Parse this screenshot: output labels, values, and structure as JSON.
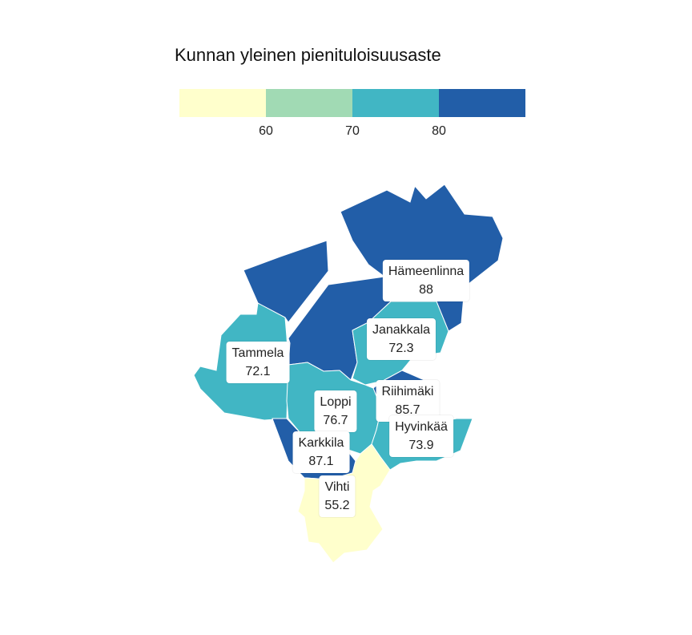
{
  "legend": {
    "title": "Kunnan yleinen pienituloisuusaste",
    "ticks": [
      "60",
      "70",
      "80"
    ],
    "colors": [
      "#ffffcc",
      "#a1dab4",
      "#41b6c4",
      "#225ea8"
    ]
  },
  "municipalities": [
    {
      "name": "Hämeenlinna",
      "value": "88",
      "color": "#225ea8"
    },
    {
      "name": "Janakkala",
      "value": "72.3",
      "color": "#41b6c4"
    },
    {
      "name": "Tammela",
      "value": "72.1",
      "color": "#41b6c4"
    },
    {
      "name": "Riihimäki",
      "value": "85.7",
      "color": "#225ea8"
    },
    {
      "name": "Loppi",
      "value": "76.7",
      "color": "#41b6c4"
    },
    {
      "name": "Hyvinkää",
      "value": "73.9",
      "color": "#41b6c4"
    },
    {
      "name": "Karkkila",
      "value": "87.1",
      "color": "#225ea8"
    },
    {
      "name": "Vihti",
      "value": "55.2",
      "color": "#ffffcc"
    }
  ]
}
